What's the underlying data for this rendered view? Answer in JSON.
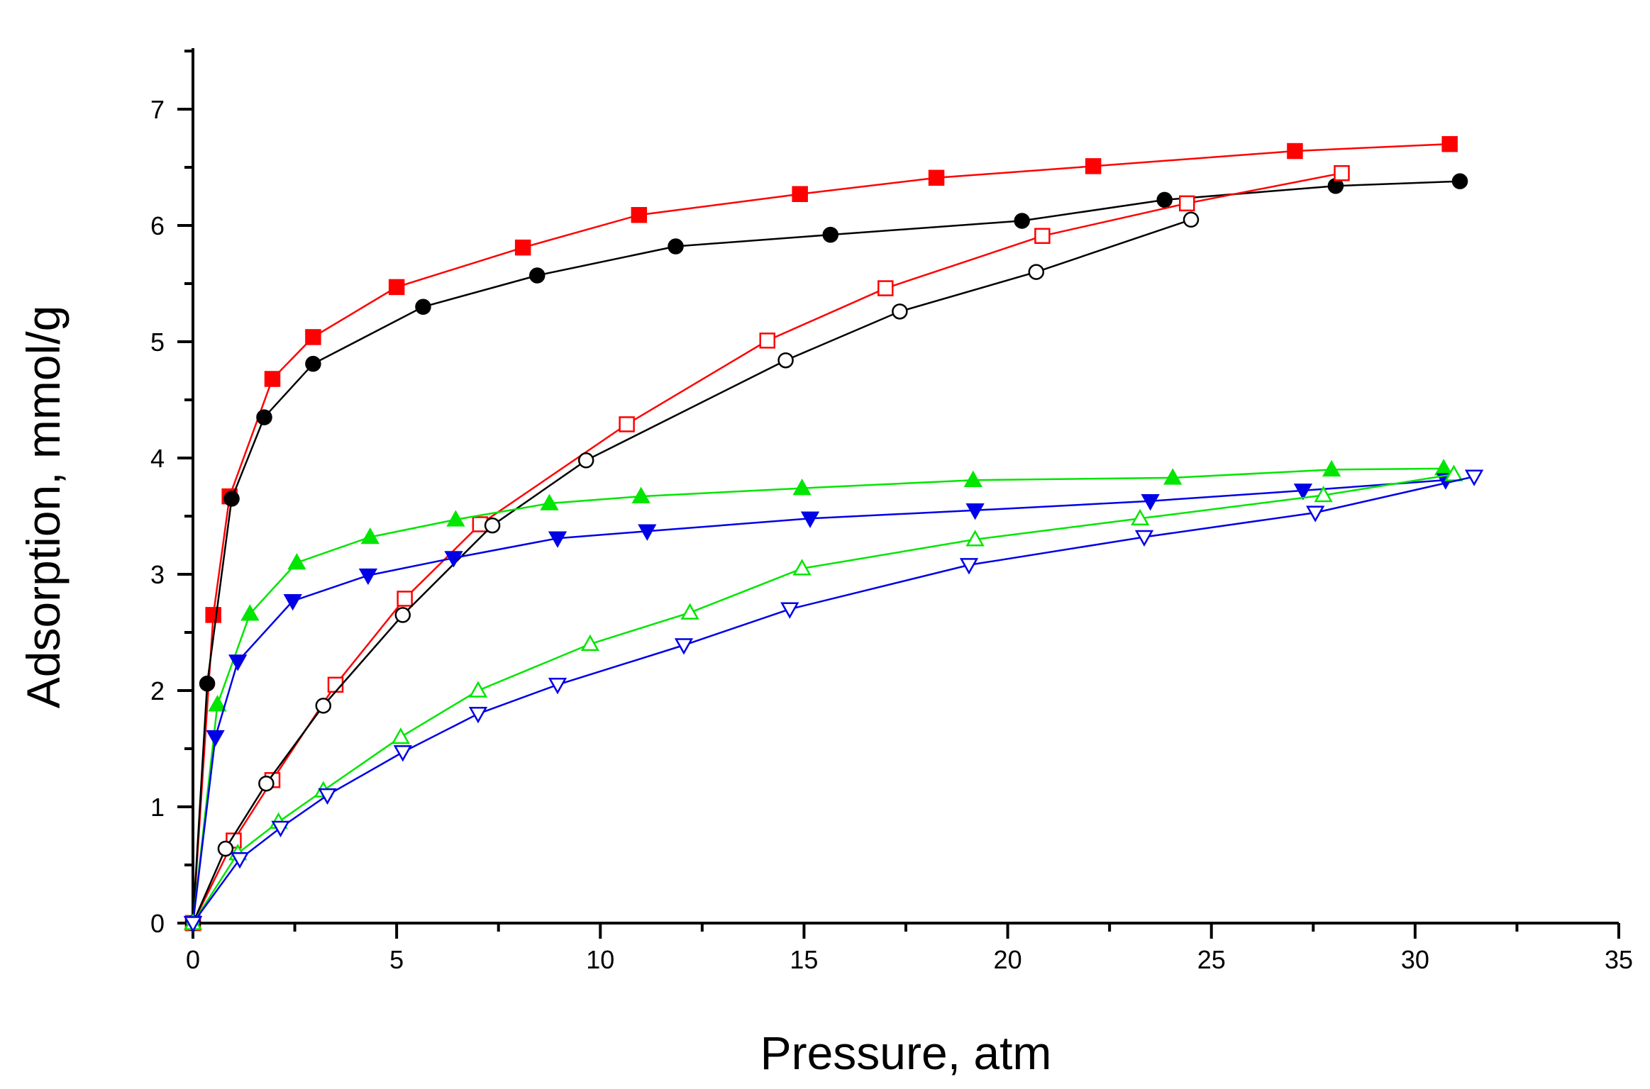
{
  "chart_data": {
    "type": "line",
    "title": "",
    "xlabel": "Pressure, atm",
    "ylabel": "Adsorption, mmol/g",
    "xlim": [
      0,
      35
    ],
    "ylim": [
      0,
      7.5
    ],
    "xticks": [
      0,
      5,
      10,
      15,
      20,
      25,
      30,
      35
    ],
    "yticks": [
      0,
      1,
      2,
      3,
      4,
      5,
      6,
      7
    ],
    "xtick_labels": [
      "0",
      "5",
      "10",
      "15",
      "20",
      "25",
      "30",
      "35"
    ],
    "ytick_labels": [
      "0",
      "1",
      "2",
      "3",
      "4",
      "5",
      "6",
      "7"
    ],
    "grid": false,
    "legend": "none",
    "series": [
      {
        "name": "red-filled-squares",
        "color": "#ff0000",
        "marker": "square",
        "filled": true,
        "x": [
          0,
          0.5,
          0.9,
          1.95,
          2.95,
          5.0,
          8.1,
          10.95,
          14.9,
          18.25,
          22.1,
          27.05,
          30.85
        ],
        "y": [
          0,
          2.65,
          3.67,
          4.68,
          5.04,
          5.47,
          5.81,
          6.09,
          6.27,
          6.41,
          6.51,
          6.64,
          6.7
        ]
      },
      {
        "name": "black-filled-circles",
        "color": "#000000",
        "marker": "circle",
        "filled": true,
        "x": [
          0,
          0.35,
          0.95,
          1.75,
          2.95,
          5.65,
          8.45,
          11.85,
          15.65,
          20.35,
          23.85,
          28.05,
          31.1
        ],
        "y": [
          0,
          2.06,
          3.65,
          4.35,
          4.81,
          5.3,
          5.57,
          5.82,
          5.92,
          6.04,
          6.22,
          6.34,
          6.38
        ]
      },
      {
        "name": "red-open-squares",
        "color": "#ff0000",
        "marker": "square",
        "filled": false,
        "x": [
          0,
          1.0,
          1.95,
          3.5,
          5.2,
          7.05,
          10.65,
          14.1,
          17.0,
          20.85,
          24.4,
          28.2
        ],
        "y": [
          0,
          0.71,
          1.23,
          2.05,
          2.79,
          3.43,
          4.29,
          5.01,
          5.46,
          5.91,
          6.19,
          6.45
        ]
      },
      {
        "name": "black-open-circles",
        "color": "#000000",
        "marker": "circle",
        "filled": false,
        "x": [
          0,
          0.8,
          1.8,
          3.2,
          5.15,
          7.35,
          9.65,
          14.55,
          17.35,
          20.7,
          24.5
        ],
        "y": [
          0,
          0.64,
          1.2,
          1.87,
          2.65,
          3.42,
          3.98,
          4.84,
          5.26,
          5.6,
          6.05
        ]
      },
      {
        "name": "green-filled-triangles",
        "color": "#00e600",
        "marker": "triangle-up",
        "filled": true,
        "x": [
          0,
          0.6,
          1.4,
          2.55,
          4.35,
          6.45,
          8.75,
          11.0,
          14.95,
          19.15,
          24.05,
          27.95,
          30.7
        ],
        "y": [
          0,
          1.88,
          2.66,
          3.1,
          3.32,
          3.47,
          3.61,
          3.67,
          3.74,
          3.81,
          3.83,
          3.9,
          3.91
        ]
      },
      {
        "name": "blue-filled-triangles",
        "color": "#0000e6",
        "marker": "triangle-down",
        "filled": true,
        "x": [
          0,
          0.55,
          1.1,
          2.45,
          4.3,
          6.4,
          8.95,
          11.15,
          15.15,
          19.2,
          23.5,
          27.25,
          30.75
        ],
        "y": [
          0,
          1.6,
          2.25,
          2.77,
          2.99,
          3.14,
          3.31,
          3.37,
          3.48,
          3.55,
          3.63,
          3.72,
          3.81
        ]
      },
      {
        "name": "green-open-triangles",
        "color": "#00e600",
        "marker": "triangle-up",
        "filled": false,
        "x": [
          0,
          1.1,
          2.1,
          3.2,
          5.1,
          7.0,
          9.75,
          12.2,
          14.95,
          19.2,
          23.25,
          27.75,
          30.95
        ],
        "y": [
          0,
          0.6,
          0.87,
          1.14,
          1.6,
          2.0,
          2.4,
          2.67,
          3.05,
          3.3,
          3.48,
          3.68,
          3.86
        ]
      },
      {
        "name": "blue-open-triangles",
        "color": "#0000e6",
        "marker": "triangle-down",
        "filled": false,
        "x": [
          0,
          1.15,
          2.15,
          3.3,
          5.15,
          7.0,
          8.95,
          12.05,
          14.65,
          19.05,
          23.35,
          27.55,
          31.45
        ],
        "y": [
          0,
          0.55,
          0.82,
          1.1,
          1.47,
          1.8,
          2.05,
          2.39,
          2.7,
          3.08,
          3.32,
          3.53,
          3.84
        ]
      }
    ]
  }
}
